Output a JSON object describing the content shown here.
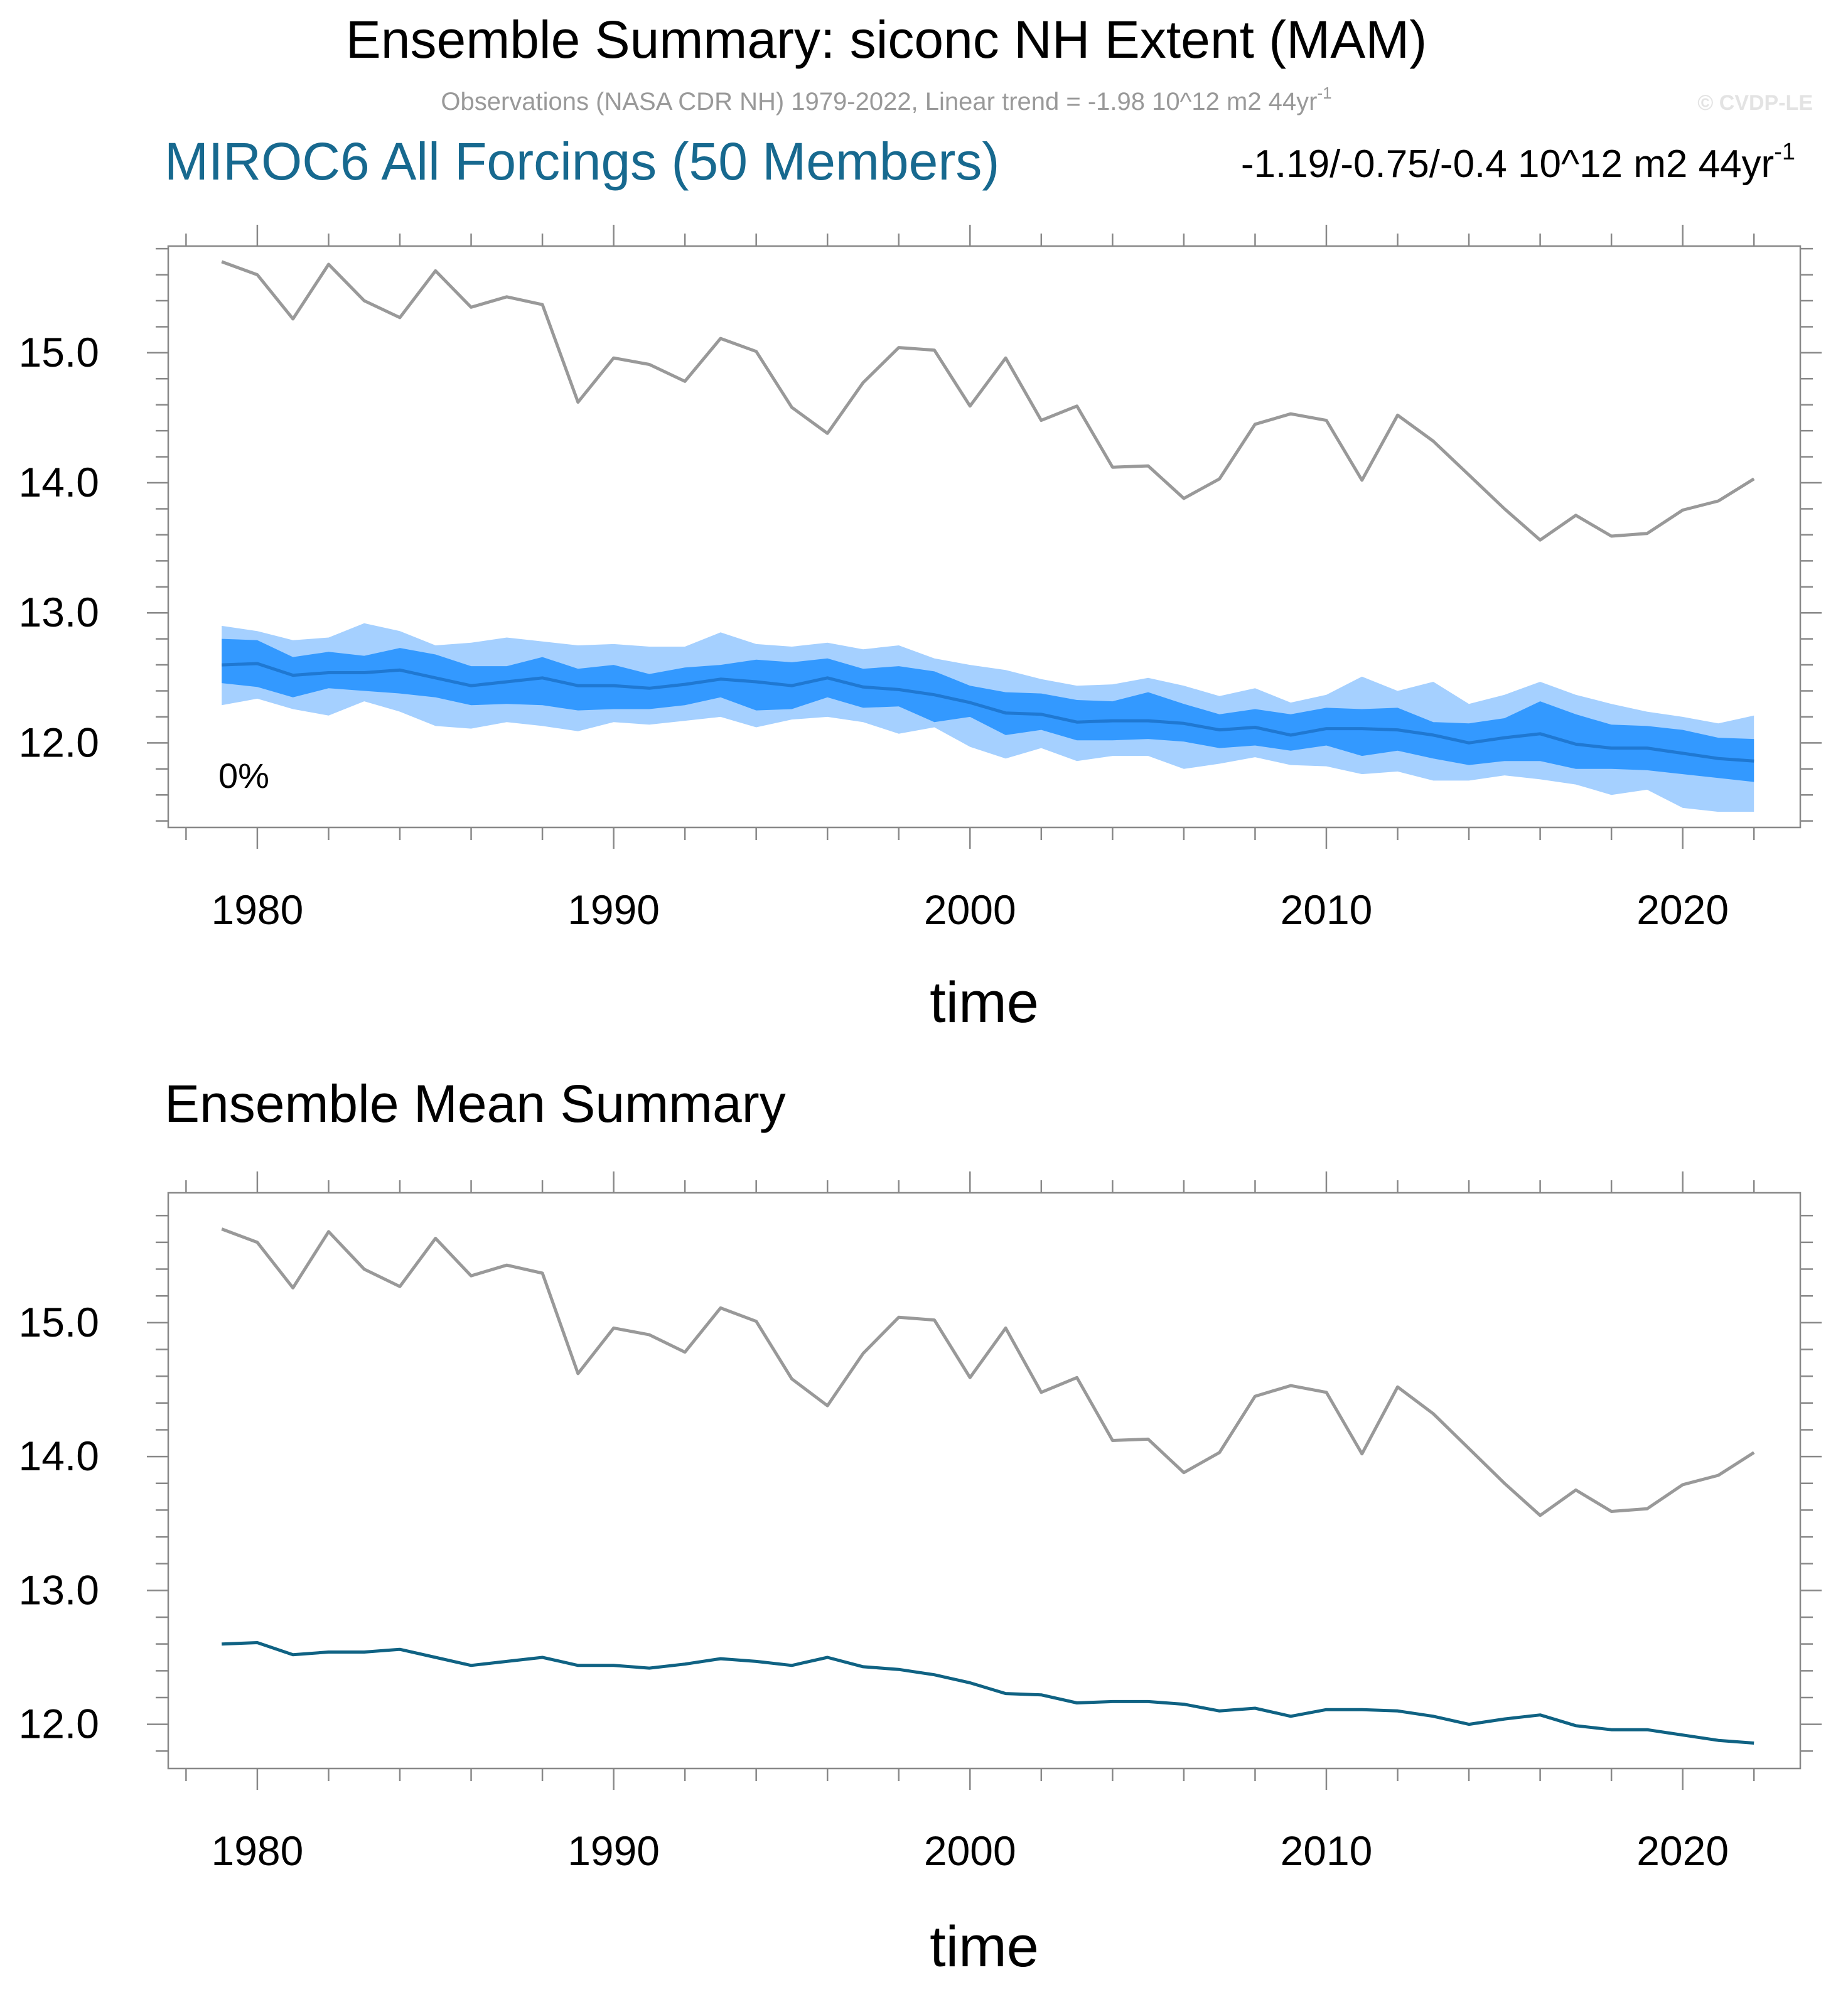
{
  "header": {
    "title": "Ensemble Summary: siconc NH Extent (MAM)",
    "obs_line": "Observations (NASA CDR NH) 1979-2022, Linear trend = -1.98 10^12 m2 44yr",
    "obs_line_sup": "-1",
    "copyright": "© CVDP-LE",
    "model_title": "MIROC6 All Forcings (50 Members)",
    "trend_range": "-1.19/-0.75/-0.4 10^12 m2 44yr",
    "trend_range_sup": "-1"
  },
  "colors": {
    "observations": "#999999",
    "ensemble_mean_top": "#1f78d2",
    "ensemble_mean_bottom": "#0f6283",
    "band_outer": "#a5d0ff",
    "band_inner": "#3399ff",
    "model_title": "#17698f",
    "axis": "#888888"
  },
  "chart_data": [
    {
      "type": "line",
      "name": "ensemble-summary",
      "title": "",
      "xlabel": "time",
      "ylabel": "",
      "xlim": [
        1977.5,
        2023.3
      ],
      "ylim": [
        11.35,
        15.82
      ],
      "xticks": [
        1980,
        1990,
        2000,
        2010,
        2020
      ],
      "xtick_labels": [
        "1980",
        "1990",
        "2000",
        "2010",
        "2020"
      ],
      "yticks": [
        12.0,
        13.0,
        14.0,
        15.0
      ],
      "ytick_labels": [
        "12.0",
        "13.0",
        "14.0",
        "15.0"
      ],
      "annotation": "0%",
      "x": [
        1979,
        1980,
        1981,
        1982,
        1983,
        1984,
        1985,
        1986,
        1987,
        1988,
        1989,
        1990,
        1991,
        1992,
        1993,
        1994,
        1995,
        1996,
        1997,
        1998,
        1999,
        2000,
        2001,
        2002,
        2003,
        2004,
        2005,
        2006,
        2007,
        2008,
        2009,
        2010,
        2011,
        2012,
        2013,
        2014,
        2015,
        2016,
        2017,
        2018,
        2019,
        2020,
        2021,
        2022
      ],
      "series": [
        {
          "name": "Observations",
          "values": [
            15.7,
            15.6,
            15.26,
            15.68,
            15.4,
            15.27,
            15.63,
            15.35,
            15.43,
            15.37,
            14.62,
            14.96,
            14.91,
            14.78,
            15.11,
            15.01,
            14.58,
            14.38,
            14.77,
            15.04,
            15.02,
            14.59,
            14.96,
            14.48,
            14.59,
            14.12,
            14.13,
            13.88,
            14.03,
            14.45,
            14.53,
            14.48,
            14.02,
            14.52,
            14.32,
            14.06,
            13.8,
            13.56,
            13.75,
            13.59,
            13.61,
            13.79,
            13.86,
            14.03
          ]
        },
        {
          "name": "Ensemble mean",
          "values": [
            12.6,
            12.61,
            12.52,
            12.54,
            12.54,
            12.56,
            12.5,
            12.44,
            12.47,
            12.5,
            12.44,
            12.44,
            12.42,
            12.45,
            12.49,
            12.47,
            12.44,
            12.5,
            12.43,
            12.41,
            12.37,
            12.31,
            12.23,
            12.22,
            12.16,
            12.17,
            12.17,
            12.15,
            12.1,
            12.12,
            12.06,
            12.11,
            12.11,
            12.1,
            12.06,
            12.0,
            12.04,
            12.07,
            11.99,
            11.96,
            11.96,
            11.92,
            11.88,
            11.86
          ]
        },
        {
          "name": "Inner band upper",
          "values": [
            12.8,
            12.79,
            12.66,
            12.7,
            12.67,
            12.73,
            12.68,
            12.59,
            12.59,
            12.66,
            12.57,
            12.6,
            12.53,
            12.58,
            12.6,
            12.64,
            12.62,
            12.65,
            12.57,
            12.59,
            12.55,
            12.44,
            12.39,
            12.38,
            12.33,
            12.32,
            12.39,
            12.3,
            12.22,
            12.26,
            12.22,
            12.27,
            12.26,
            12.27,
            12.16,
            12.15,
            12.19,
            12.32,
            12.22,
            12.14,
            12.13,
            12.1,
            12.04,
            12.03
          ]
        },
        {
          "name": "Inner band lower",
          "values": [
            12.46,
            12.43,
            12.35,
            12.42,
            12.4,
            12.38,
            12.35,
            12.29,
            12.3,
            12.29,
            12.25,
            12.26,
            12.26,
            12.29,
            12.35,
            12.25,
            12.26,
            12.35,
            12.27,
            12.28,
            12.16,
            12.2,
            12.06,
            12.1,
            12.02,
            12.02,
            12.03,
            12.01,
            11.96,
            11.98,
            11.94,
            11.98,
            11.9,
            11.94,
            11.88,
            11.83,
            11.86,
            11.86,
            11.8,
            11.8,
            11.79,
            11.76,
            11.73,
            11.7
          ]
        },
        {
          "name": "Outer band upper",
          "values": [
            12.9,
            12.86,
            12.79,
            12.81,
            12.92,
            12.86,
            12.75,
            12.77,
            12.81,
            12.78,
            12.75,
            12.76,
            12.74,
            12.74,
            12.85,
            12.76,
            12.74,
            12.77,
            12.72,
            12.75,
            12.65,
            12.6,
            12.56,
            12.49,
            12.44,
            12.45,
            12.5,
            12.44,
            12.36,
            12.42,
            12.31,
            12.37,
            12.51,
            12.4,
            12.47,
            12.3,
            12.37,
            12.47,
            12.37,
            12.3,
            12.24,
            12.2,
            12.15,
            12.21
          ]
        },
        {
          "name": "Outer band lower",
          "values": [
            12.29,
            12.34,
            12.26,
            12.21,
            12.32,
            12.24,
            12.13,
            12.11,
            12.16,
            12.13,
            12.09,
            12.16,
            12.14,
            12.17,
            12.2,
            12.12,
            12.18,
            12.2,
            12.16,
            12.07,
            12.12,
            11.97,
            11.88,
            11.96,
            11.86,
            11.9,
            11.9,
            11.8,
            11.84,
            11.89,
            11.83,
            11.82,
            11.76,
            11.78,
            11.71,
            11.71,
            11.75,
            11.72,
            11.68,
            11.6,
            11.64,
            11.5,
            11.47,
            11.47
          ]
        }
      ]
    },
    {
      "type": "line",
      "name": "ensemble-mean-summary",
      "title": "Ensemble Mean Summary",
      "xlabel": "time",
      "ylabel": "",
      "xlim": [
        1977.5,
        2023.3
      ],
      "ylim": [
        11.67,
        15.97
      ],
      "xticks": [
        1980,
        1990,
        2000,
        2010,
        2020
      ],
      "xtick_labels": [
        "1980",
        "1990",
        "2000",
        "2010",
        "2020"
      ],
      "yticks": [
        12.0,
        13.0,
        14.0,
        15.0
      ],
      "ytick_labels": [
        "12.0",
        "13.0",
        "14.0",
        "15.0"
      ],
      "x": [
        1979,
        1980,
        1981,
        1982,
        1983,
        1984,
        1985,
        1986,
        1987,
        1988,
        1989,
        1990,
        1991,
        1992,
        1993,
        1994,
        1995,
        1996,
        1997,
        1998,
        1999,
        2000,
        2001,
        2002,
        2003,
        2004,
        2005,
        2006,
        2007,
        2008,
        2009,
        2010,
        2011,
        2012,
        2013,
        2014,
        2015,
        2016,
        2017,
        2018,
        2019,
        2020,
        2021,
        2022
      ],
      "series": [
        {
          "name": "Observations",
          "values": [
            15.7,
            15.6,
            15.26,
            15.68,
            15.4,
            15.27,
            15.63,
            15.35,
            15.43,
            15.37,
            14.62,
            14.96,
            14.91,
            14.78,
            15.11,
            15.01,
            14.58,
            14.38,
            14.77,
            15.04,
            15.02,
            14.59,
            14.96,
            14.48,
            14.59,
            14.12,
            14.13,
            13.88,
            14.03,
            14.45,
            14.53,
            14.48,
            14.02,
            14.52,
            14.32,
            14.06,
            13.8,
            13.56,
            13.75,
            13.59,
            13.61,
            13.79,
            13.86,
            14.03
          ]
        },
        {
          "name": "Ensemble mean",
          "values": [
            12.6,
            12.61,
            12.52,
            12.54,
            12.54,
            12.56,
            12.5,
            12.44,
            12.47,
            12.5,
            12.44,
            12.44,
            12.42,
            12.45,
            12.49,
            12.47,
            12.44,
            12.5,
            12.43,
            12.41,
            12.37,
            12.31,
            12.23,
            12.22,
            12.16,
            12.17,
            12.17,
            12.15,
            12.1,
            12.12,
            12.06,
            12.11,
            12.11,
            12.1,
            12.06,
            12.0,
            12.04,
            12.07,
            11.99,
            11.96,
            11.96,
            11.92,
            11.88,
            11.86
          ]
        }
      ]
    }
  ]
}
